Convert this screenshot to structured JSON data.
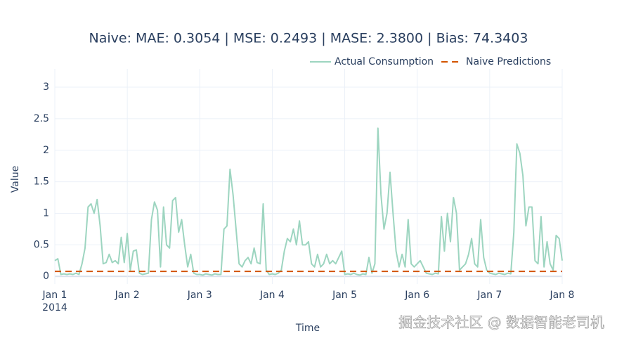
{
  "chart_data": {
    "type": "line",
    "title": "Naive: MAE: 0.3054 | MSE: 0.2493 | MASE: 2.3800 | Bias: 74.3403",
    "x_label": "Time",
    "y_label": "Value",
    "x_year_label": "2014",
    "watermark": "掘金技术社区 @ 数据智能老司机",
    "xlim": [
      0,
      168
    ],
    "ylim": [
      -0.12,
      3.29
    ],
    "xticks": [
      {
        "value": 0,
        "label": "Jan 1"
      },
      {
        "value": 24,
        "label": "Jan 2"
      },
      {
        "value": 48,
        "label": "Jan 3"
      },
      {
        "value": 72,
        "label": "Jan 4"
      },
      {
        "value": 96,
        "label": "Jan 5"
      },
      {
        "value": 120,
        "label": "Jan 6"
      },
      {
        "value": 144,
        "label": "Jan 7"
      },
      {
        "value": 168,
        "label": "Jan 8"
      }
    ],
    "yticks": [
      0,
      0.5,
      1,
      1.5,
      2,
      2.5,
      3
    ],
    "grid": true,
    "legend": "top-right",
    "series": [
      {
        "name": "Actual Consumption",
        "color": "#9dd5c0",
        "dash": false,
        "x": [
          0,
          1,
          2,
          3,
          4,
          5,
          6,
          7,
          8,
          9,
          10,
          11,
          12,
          13,
          14,
          15,
          16,
          17,
          18,
          19,
          20,
          21,
          22,
          23,
          24,
          25,
          26,
          27,
          28,
          29,
          30,
          31,
          32,
          33,
          34,
          35,
          36,
          37,
          38,
          39,
          40,
          41,
          42,
          43,
          44,
          45,
          46,
          47,
          48,
          49,
          50,
          51,
          52,
          53,
          54,
          55,
          56,
          57,
          58,
          59,
          60,
          61,
          62,
          63,
          64,
          65,
          66,
          67,
          68,
          69,
          70,
          71,
          72,
          73,
          74,
          75,
          76,
          77,
          78,
          79,
          80,
          81,
          82,
          83,
          84,
          85,
          86,
          87,
          88,
          89,
          90,
          91,
          92,
          93,
          94,
          95,
          96,
          97,
          98,
          99,
          100,
          101,
          102,
          103,
          104,
          105,
          106,
          107,
          108,
          109,
          110,
          111,
          112,
          113,
          114,
          115,
          116,
          117,
          118,
          119,
          120,
          121,
          122,
          123,
          124,
          125,
          126,
          127,
          128,
          129,
          130,
          131,
          132,
          133,
          134,
          135,
          136,
          137,
          138,
          139,
          140,
          141,
          142,
          143,
          144,
          145,
          146,
          147,
          148,
          149,
          150,
          151,
          152,
          153,
          154,
          155,
          156,
          157,
          158,
          159,
          160,
          161,
          162,
          163,
          164,
          165,
          166,
          167,
          168
        ],
        "values": [
          0.25,
          0.28,
          0.03,
          0.04,
          0.03,
          0.04,
          0.03,
          0.05,
          0.03,
          0.2,
          0.45,
          1.1,
          1.15,
          1.0,
          1.22,
          0.8,
          0.2,
          0.22,
          0.35,
          0.22,
          0.25,
          0.2,
          0.62,
          0.22,
          0.68,
          0.1,
          0.4,
          0.42,
          0.05,
          0.03,
          0.04,
          0.05,
          0.9,
          1.18,
          1.05,
          0.15,
          1.1,
          0.5,
          0.45,
          1.2,
          1.25,
          0.7,
          0.9,
          0.5,
          0.15,
          0.35,
          0.05,
          0.03,
          0.03,
          0.02,
          0.04,
          0.03,
          0.02,
          0.04,
          0.03,
          0.03,
          0.75,
          0.8,
          1.7,
          1.3,
          0.75,
          0.2,
          0.15,
          0.25,
          0.3,
          0.2,
          0.45,
          0.22,
          0.2,
          1.15,
          0.1,
          0.03,
          0.04,
          0.03,
          0.05,
          0.1,
          0.4,
          0.6,
          0.55,
          0.75,
          0.5,
          0.88,
          0.5,
          0.5,
          0.55,
          0.2,
          0.15,
          0.35,
          0.15,
          0.2,
          0.35,
          0.2,
          0.25,
          0.2,
          0.3,
          0.4,
          0.03,
          0.04,
          0.03,
          0.05,
          0.03,
          0.02,
          0.04,
          0.03,
          0.3,
          0.05,
          0.2,
          2.35,
          1.3,
          0.75,
          1.0,
          1.65,
          1.0,
          0.4,
          0.15,
          0.35,
          0.15,
          0.9,
          0.2,
          0.15,
          0.2,
          0.25,
          0.15,
          0.05,
          0.04,
          0.03,
          0.05,
          0.04,
          0.95,
          0.4,
          1.0,
          0.55,
          1.25,
          1.0,
          0.1,
          0.15,
          0.2,
          0.35,
          0.6,
          0.2,
          0.15,
          0.9,
          0.3,
          0.1,
          0.05,
          0.04,
          0.03,
          0.05,
          0.04,
          0.03,
          0.05,
          0.04,
          0.7,
          2.1,
          1.95,
          1.6,
          0.8,
          1.1,
          1.1,
          0.25,
          0.2,
          0.95,
          0.15,
          0.55,
          0.2,
          0.1,
          0.65,
          0.6,
          0.25
        ]
      },
      {
        "name": "Naive Predictions",
        "color": "#d35400",
        "dash": true,
        "x": [
          0,
          168
        ],
        "values": [
          0.08,
          0.08
        ]
      }
    ]
  }
}
